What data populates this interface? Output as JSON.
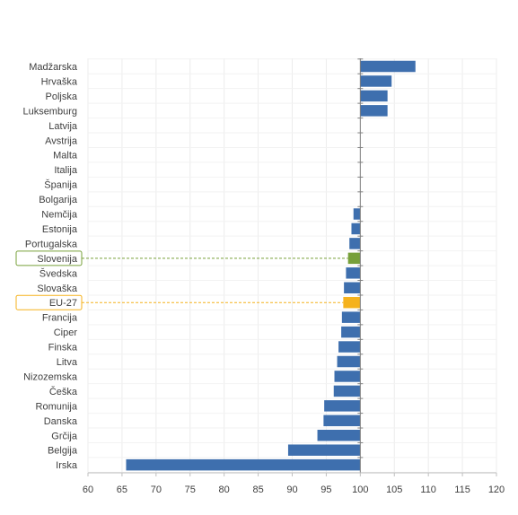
{
  "chart_data": {
    "type": "bar",
    "orientation": "horizontal",
    "baseline": 100,
    "categories": [
      "Madžarska",
      "Hrvaška",
      "Poljska",
      "Luksemburg",
      "Latvija",
      "Avstrija",
      "Malta",
      "Italija",
      "Španija",
      "Bolgarija",
      "Nemčija",
      "Estonija",
      "Portugalska",
      "Slovenija",
      "Švedska",
      "Slovaška",
      "EU-27",
      "Francija",
      "Ciper",
      "Finska",
      "Litva",
      "Nizozemska",
      "Češka",
      "Romunija",
      "Danska",
      "Grčija",
      "Belgija",
      "Irska"
    ],
    "values": [
      108.1,
      104.6,
      104.0,
      104.0,
      100.0,
      100.0,
      100.0,
      100.0,
      100.0,
      100.0,
      99.0,
      98.7,
      98.4,
      98.2,
      97.9,
      97.6,
      97.5,
      97.3,
      97.2,
      96.8,
      96.6,
      96.2,
      96.1,
      94.7,
      94.6,
      93.7,
      89.4,
      65.6
    ],
    "highlight": {
      "Slovenija": "#77a03a",
      "EU-27": "#f5b21d"
    },
    "bar_color": "#3e6fae",
    "highlight_box_color": {
      "Slovenija": "#77a03a",
      "EU-27": "#f5b21d"
    },
    "xlim": [
      60,
      120
    ],
    "xticks": [
      60,
      65,
      70,
      75,
      80,
      85,
      90,
      95,
      100,
      105,
      110,
      115,
      120
    ],
    "grid": true,
    "title": "",
    "xlabel": "",
    "ylabel": ""
  }
}
